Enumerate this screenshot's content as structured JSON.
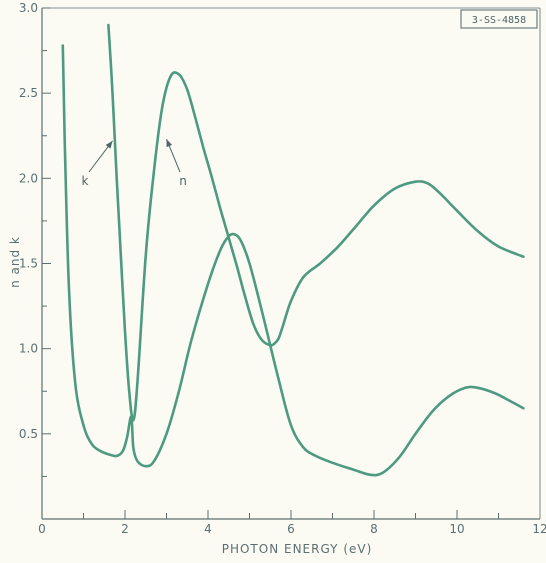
{
  "chart_data": {
    "type": "line",
    "title": "",
    "xlabel": "PHOTON ENERGY (eV)",
    "ylabel": "n and k",
    "xlim": [
      0,
      12
    ],
    "ylim": [
      0,
      3.0
    ],
    "x_ticks": [
      "0",
      "2",
      "4",
      "6",
      "8",
      "10",
      "12"
    ],
    "y_ticks": [
      "0.5",
      "1.0",
      "1.5",
      "2.0",
      "2.5",
      "3.0"
    ],
    "grid": false,
    "figure_id": "3-SS-4858",
    "colors": {
      "curve": "#4e9a80",
      "axis": "#5b6f72",
      "text": "#5b6f72",
      "background": "#fbfbf4"
    },
    "series": [
      {
        "name": "k",
        "x": [
          0.5,
          0.55,
          0.65,
          0.8,
          1.0,
          1.2,
          1.4,
          1.6,
          1.8,
          1.95,
          2.05,
          2.15,
          2.2,
          2.3,
          2.5,
          2.7,
          3.0,
          3.3,
          3.6,
          4.0,
          4.3,
          4.5,
          4.65,
          4.8,
          5.0,
          5.3,
          5.7,
          6.0,
          6.3,
          6.6,
          7.0,
          7.5,
          7.9,
          8.2,
          8.6,
          9.0,
          9.4,
          9.8,
          10.2,
          10.5,
          10.9,
          11.3,
          11.6
        ],
        "y": [
          2.78,
          2.2,
          1.35,
          0.8,
          0.55,
          0.44,
          0.4,
          0.38,
          0.37,
          0.4,
          0.48,
          0.6,
          0.42,
          0.34,
          0.31,
          0.34,
          0.5,
          0.75,
          1.05,
          1.38,
          1.58,
          1.66,
          1.67,
          1.63,
          1.5,
          1.22,
          0.82,
          0.55,
          0.42,
          0.37,
          0.33,
          0.29,
          0.26,
          0.27,
          0.36,
          0.5,
          0.63,
          0.72,
          0.77,
          0.77,
          0.74,
          0.69,
          0.65
        ]
      },
      {
        "name": "n",
        "x": [
          1.6,
          1.7,
          1.8,
          1.9,
          2.0,
          2.1,
          2.2,
          2.3,
          2.5,
          2.7,
          2.9,
          3.1,
          3.3,
          3.5,
          3.7,
          3.9,
          4.1,
          4.3,
          4.5,
          4.7,
          4.9,
          5.1,
          5.3,
          5.5,
          5.6,
          5.7,
          5.8,
          6.0,
          6.3,
          6.7,
          7.1,
          7.5,
          8.0,
          8.5,
          9.0,
          9.3,
          9.6,
          10.0,
          10.5,
          11.0,
          11.6
        ],
        "y": [
          2.9,
          2.5,
          2.0,
          1.55,
          1.1,
          0.75,
          0.58,
          0.8,
          1.55,
          2.05,
          2.42,
          2.6,
          2.61,
          2.52,
          2.35,
          2.17,
          2.0,
          1.82,
          1.65,
          1.48,
          1.3,
          1.14,
          1.05,
          1.02,
          1.03,
          1.06,
          1.13,
          1.28,
          1.42,
          1.5,
          1.59,
          1.7,
          1.84,
          1.94,
          1.98,
          1.97,
          1.91,
          1.81,
          1.69,
          1.6,
          1.54
        ]
      }
    ],
    "annotations": [
      {
        "text": "k",
        "arrow_to_x": 1.7,
        "arrow_to_y": 2.22
      },
      {
        "text": "n",
        "arrow_to_x": 3.0,
        "arrow_to_y": 2.23
      }
    ]
  }
}
